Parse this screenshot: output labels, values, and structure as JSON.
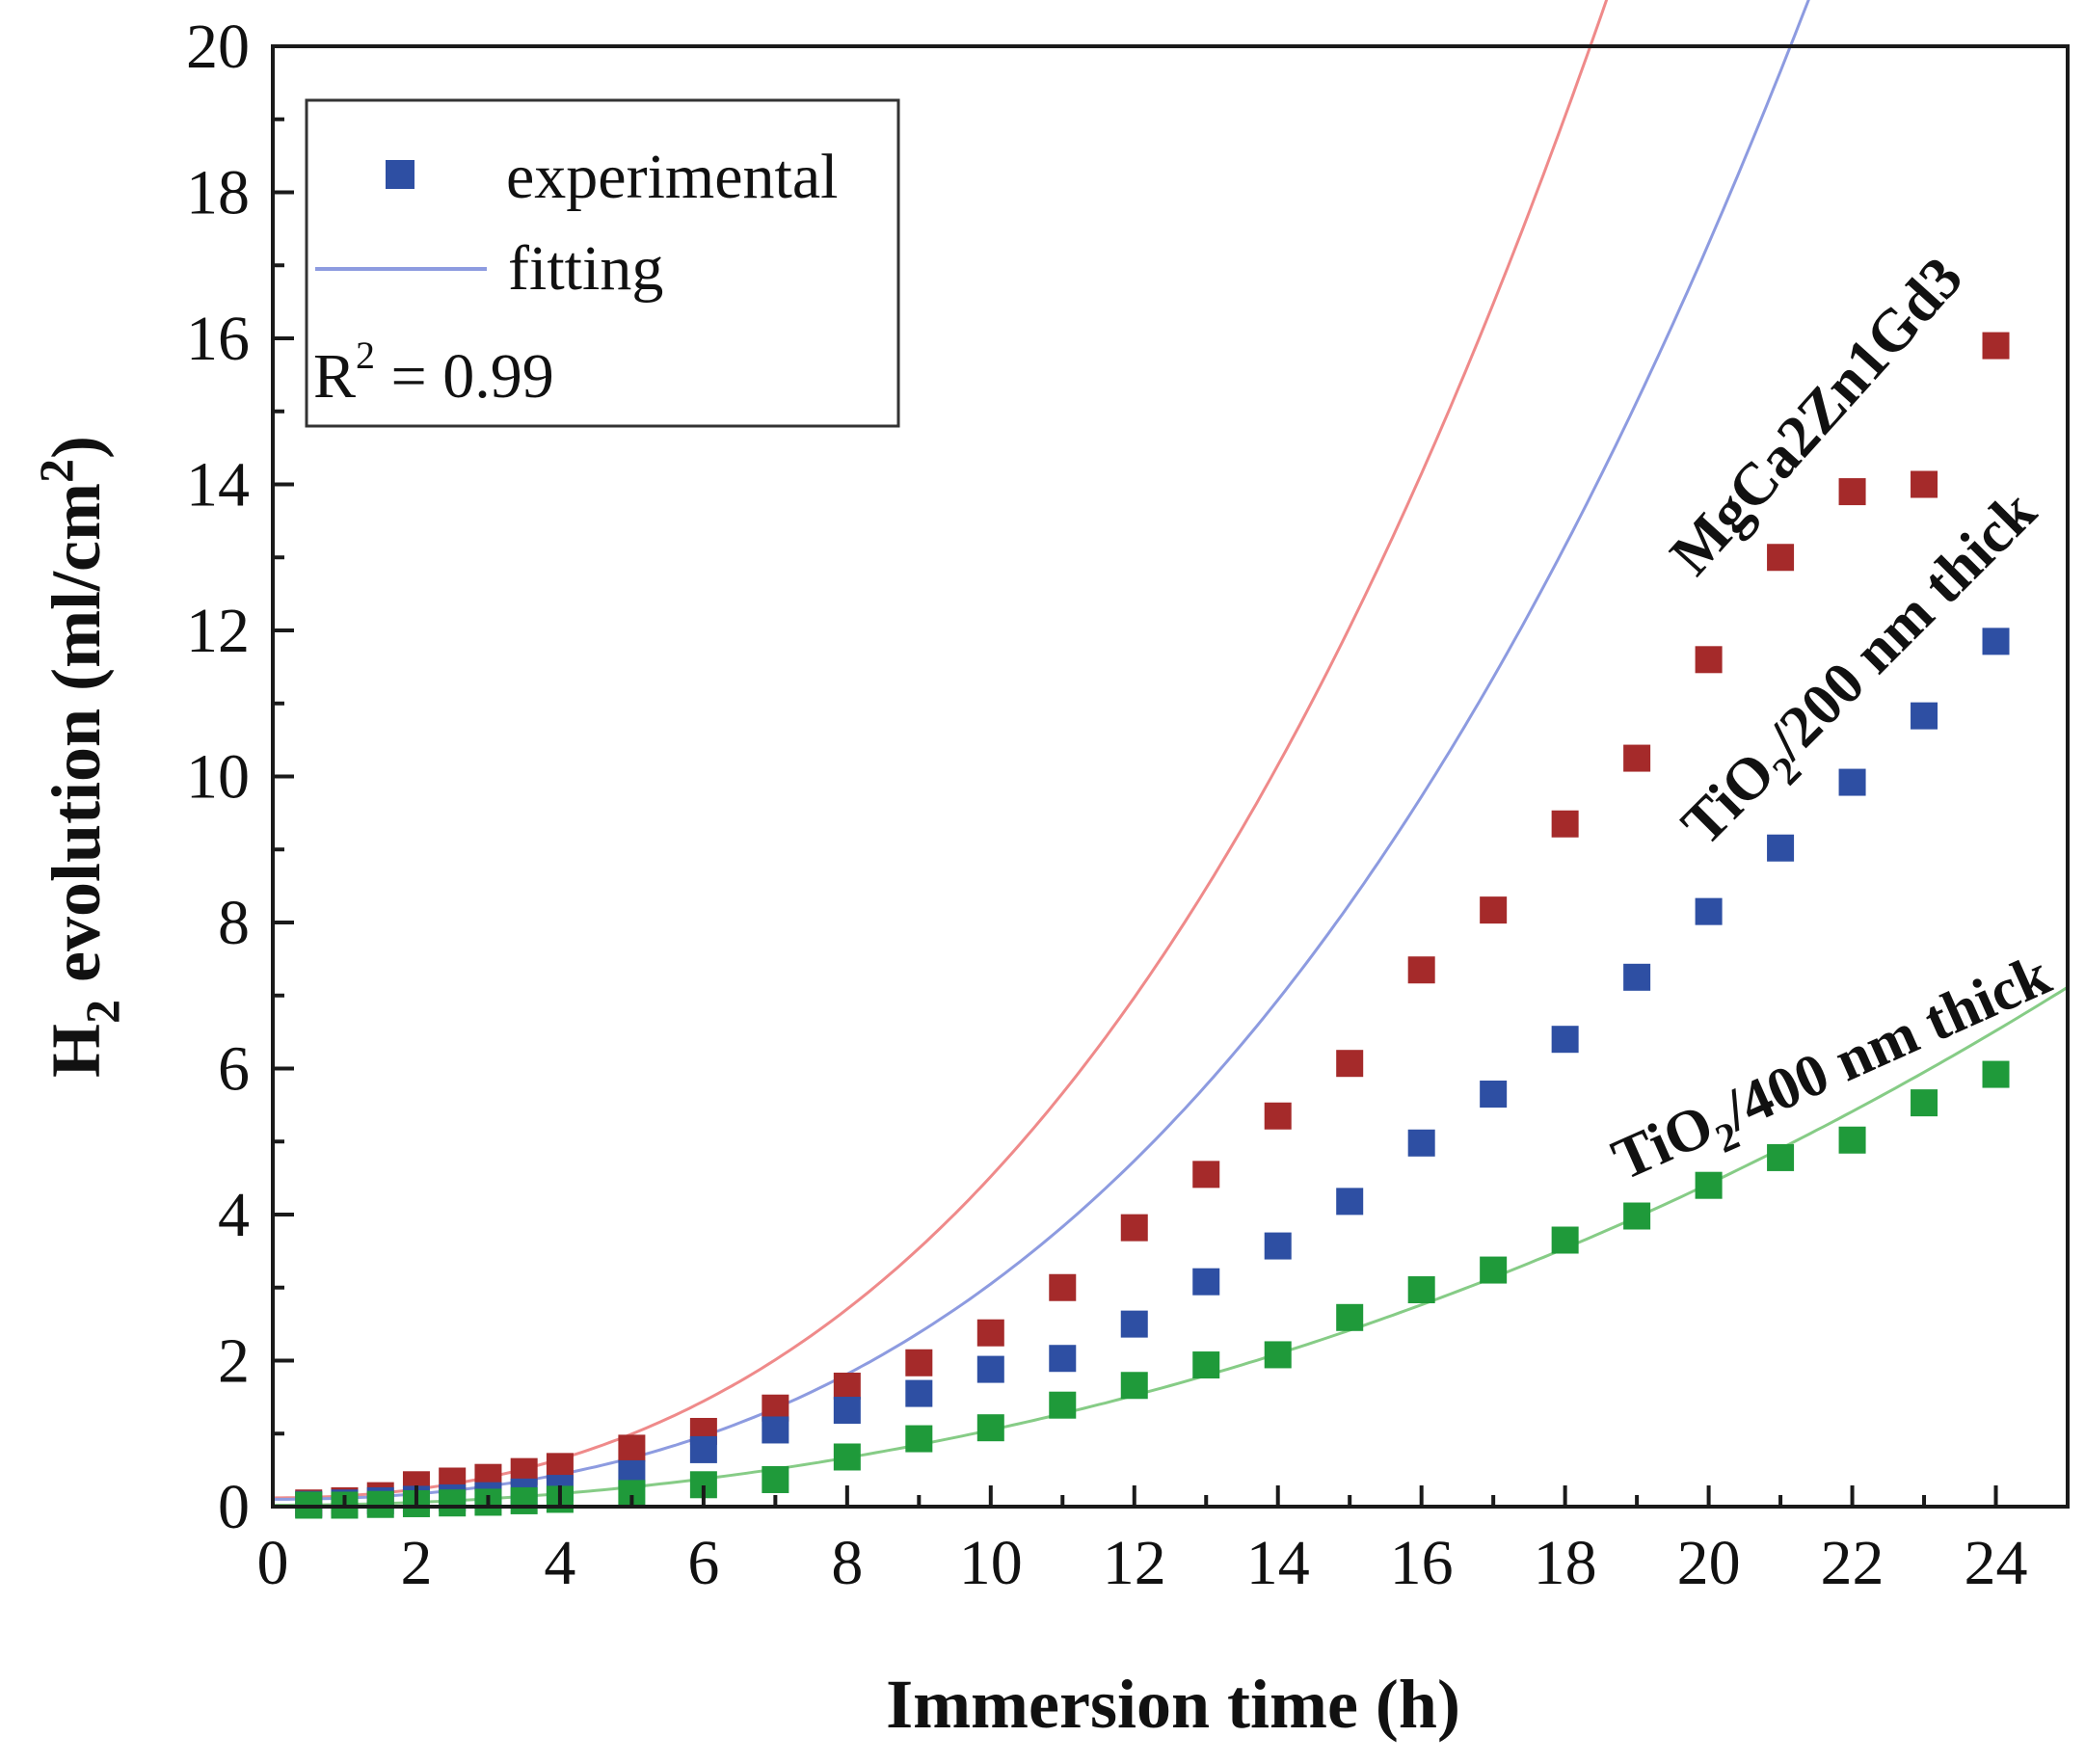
{
  "chart_data": {
    "type": "scatter",
    "xlabel": "Immersion time (h)",
    "ylabel": {
      "parts": [
        "H",
        "2",
        " evolution (ml/cm",
        "2",
        ")"
      ]
    },
    "xlim": [
      0,
      25
    ],
    "ylim": [
      0,
      20
    ],
    "xticks": [
      "0",
      "2",
      "4",
      "6",
      "8",
      "10",
      "12",
      "14",
      "16",
      "18",
      "20",
      "22",
      "24"
    ],
    "yticks": [
      "0",
      "2",
      "4",
      "6",
      "8",
      "10",
      "12",
      "14",
      "16",
      "18",
      "20"
    ],
    "legend": {
      "position": "top-left",
      "experimental_label": "experimental",
      "fitting_label": "fitting",
      "r2_prefix": "R",
      "r2_sup": "2",
      "r2_value": " = 0.99"
    },
    "series": [
      {
        "name": "MgCa2Zn1Gd3",
        "label_parts": [
          "MgCa2Zn1Gd3"
        ],
        "marker_color": "#a52a2a",
        "line_color": "#ef8a8a",
        "fit": {
          "a": 0.026,
          "b": 0.0018,
          "c": 0.12
        },
        "x": [
          0.5,
          1,
          1.5,
          2,
          2.5,
          3,
          3.5,
          4,
          5,
          6,
          7,
          8,
          9,
          10,
          11,
          12,
          13,
          14,
          15,
          16,
          17,
          18,
          19,
          20,
          21,
          22,
          23,
          24
        ],
        "y": [
          0.05,
          0.08,
          0.15,
          0.3,
          0.35,
          0.4,
          0.48,
          0.55,
          0.8,
          1.03,
          1.35,
          1.65,
          1.97,
          2.38,
          3.0,
          3.82,
          4.55,
          5.35,
          6.07,
          7.35,
          8.17,
          9.35,
          10.25,
          11.6,
          13.0,
          13.9,
          14.0,
          15.9
        ]
      },
      {
        "name": "TiO2/200 nm thick",
        "label_parts": [
          "TiO",
          "2",
          "/200 nm thick"
        ],
        "marker_color": "#2e4fa3",
        "line_color": "#8d9be0",
        "fit": {
          "a": 0.016,
          "b": 0.00135,
          "c": 0.1
        },
        "x": [
          0.5,
          1,
          1.5,
          2,
          2.5,
          3,
          3.5,
          4,
          5,
          6,
          7,
          8,
          9,
          10,
          11,
          12,
          13,
          14,
          15,
          16,
          17,
          18,
          19,
          20,
          21,
          22,
          23,
          24
        ],
        "y": [
          0.03,
          0.05,
          0.08,
          0.1,
          0.12,
          0.15,
          0.2,
          0.25,
          0.45,
          0.78,
          1.05,
          1.32,
          1.55,
          1.88,
          2.03,
          2.5,
          3.08,
          3.57,
          4.18,
          4.98,
          5.65,
          6.4,
          7.25,
          8.15,
          9.02,
          9.92,
          10.83,
          11.85
        ]
      },
      {
        "name": "TiO2/400 nm thick",
        "label_parts": [
          "TiO",
          "2",
          "/400 nm thick"
        ],
        "marker_color": "#1f9a3a",
        "line_color": "#86cc86",
        "fit": {
          "a": 0.0096,
          "b": 7e-05,
          "c": 0.02
        },
        "x": [
          0.5,
          1,
          1.5,
          2,
          2.5,
          3,
          3.5,
          4,
          5,
          6,
          7,
          8,
          9,
          10,
          11,
          12,
          13,
          14,
          15,
          16,
          17,
          18,
          19,
          20,
          21,
          22,
          23,
          24
        ],
        "y": [
          0.02,
          0.02,
          0.03,
          0.04,
          0.05,
          0.06,
          0.08,
          0.1,
          0.18,
          0.3,
          0.37,
          0.68,
          0.93,
          1.08,
          1.39,
          1.66,
          1.94,
          2.08,
          2.59,
          2.97,
          3.24,
          3.65,
          3.98,
          4.4,
          4.78,
          5.02,
          5.53,
          5.92
        ]
      }
    ]
  }
}
